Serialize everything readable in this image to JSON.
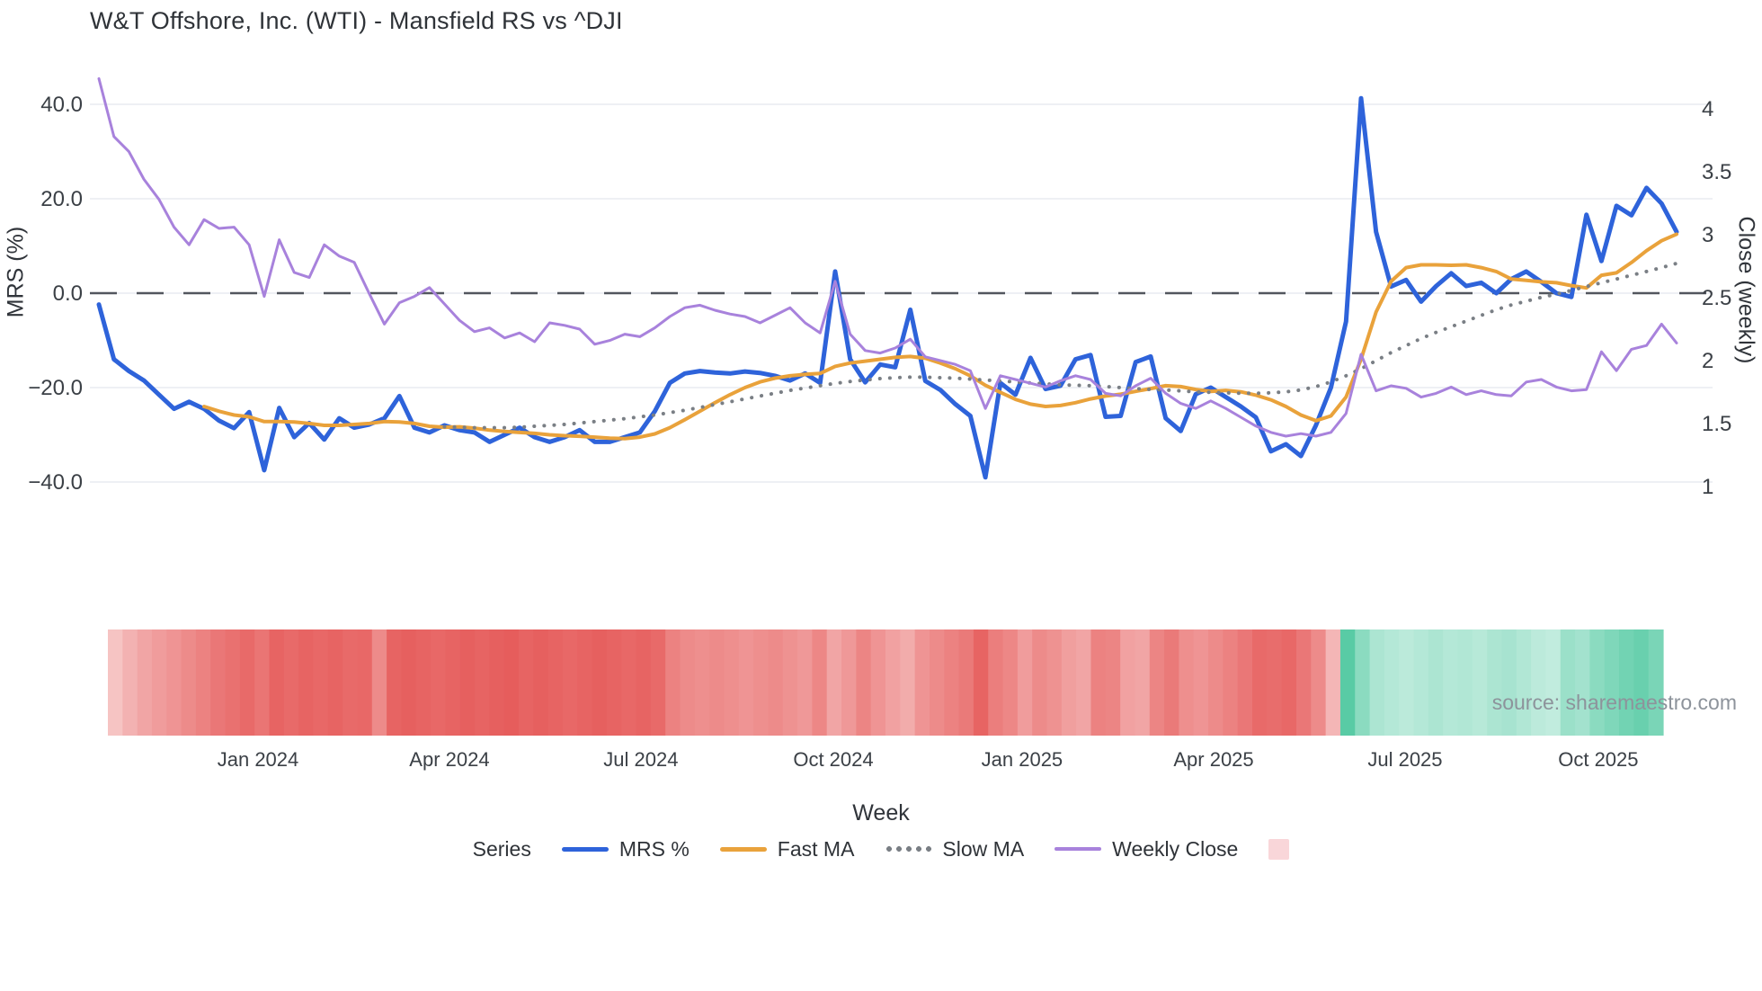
{
  "header": {
    "title": "W&T Offshore, Inc. (WTI) - Mansfield RS vs ^DJI"
  },
  "source_note": "source: sharemaestro.com",
  "legend": {
    "group_label": "Series",
    "items": [
      {
        "label": "MRS %",
        "color": "#2e63da",
        "style": "solid"
      },
      {
        "label": "Fast MA",
        "color": "#e9a23b",
        "style": "solid"
      },
      {
        "label": "Slow MA",
        "color": "#7a7f85",
        "style": "dotted"
      },
      {
        "label": "Weekly Close",
        "color": "#a882dc",
        "style": "solid"
      }
    ],
    "heat_swatch_color": "#f9d6d9"
  },
  "chart_data": {
    "type": "line",
    "title": "W&T Offshore, Inc. (WTI) - Mansfield RS vs ^DJI",
    "xlabel": "Week",
    "ylabel_left": "MRS (%)",
    "ylabel_right": "Close (weekly)",
    "grid": true,
    "zero_line": {
      "value": 0,
      "axis": "left",
      "style": "dashed",
      "color": "#52565e"
    },
    "left_axis": {
      "range": [
        -44,
        45
      ],
      "ticks": [
        {
          "v": 40,
          "label": "40.0"
        },
        {
          "v": 20,
          "label": "20.0"
        },
        {
          "v": 0,
          "label": "0.0"
        },
        {
          "v": -20,
          "label": "−20.0"
        },
        {
          "v": -40,
          "label": "−40.0"
        }
      ]
    },
    "right_axis": {
      "range": [
        0.9,
        4.3
      ],
      "ticks": [
        {
          "v": 4,
          "label": "4"
        },
        {
          "v": 3.5,
          "label": "3.5"
        },
        {
          "v": 3,
          "label": "3"
        },
        {
          "v": 2.5,
          "label": "2.5"
        },
        {
          "v": 2,
          "label": "2"
        },
        {
          "v": 1.5,
          "label": "1.5"
        },
        {
          "v": 1,
          "label": "1"
        }
      ]
    },
    "x_axis": {
      "unit": "week-index",
      "ticks": [
        {
          "i": 10.59,
          "label": "Jan 2024"
        },
        {
          "i": 23.33,
          "label": "Apr 2024"
        },
        {
          "i": 36.07,
          "label": "Jul 2024"
        },
        {
          "i": 48.88,
          "label": "Oct 2024"
        },
        {
          "i": 61.44,
          "label": "Jan 2025"
        },
        {
          "i": 74.19,
          "label": "Apr 2025"
        },
        {
          "i": 86.93,
          "label": "Jul 2025"
        },
        {
          "i": 99.79,
          "label": "Oct 2025"
        }
      ]
    },
    "series": [
      {
        "name": "MRS %",
        "axis": "left",
        "color": "#2e63da",
        "width": 5,
        "style": "solid",
        "values": [
          -2.4,
          -14.0,
          -16.5,
          -18.5,
          -21.5,
          -24.5,
          -23.0,
          -24.5,
          -27.0,
          -28.6,
          -25.2,
          -37.5,
          -24.3,
          -30.5,
          -27.5,
          -31.0,
          -26.5,
          -28.5,
          -27.8,
          -26.5,
          -21.8,
          -28.5,
          -29.5,
          -28.0,
          -29.0,
          -29.5,
          -31.5,
          -30.0,
          -28.5,
          -30.5,
          -31.5,
          -30.5,
          -29.0,
          -31.5,
          -31.5,
          -30.5,
          -29.5,
          -25.0,
          -19.0,
          -17.0,
          -16.5,
          -16.8,
          -17.0,
          -16.6,
          -16.9,
          -17.5,
          -18.5,
          -17.0,
          -19.0,
          4.6,
          -14.0,
          -18.9,
          -15.1,
          -15.7,
          -3.5,
          -18.6,
          -20.5,
          -23.5,
          -26.0,
          -39.0,
          -19.0,
          -21.5,
          -13.7,
          -20.3,
          -19.6,
          -14.0,
          -13.1,
          -26.2,
          -26.0,
          -14.6,
          -13.4,
          -26.5,
          -29.2,
          -21.4,
          -20.0,
          -22.0,
          -24.0,
          -26.3,
          -33.5,
          -32.0,
          -34.5,
          -28.0,
          -20.0,
          -6.0,
          41.3,
          13.0,
          1.4,
          2.8,
          -1.8,
          1.5,
          4.2,
          1.5,
          2.2,
          0.0,
          3.0,
          4.6,
          2.4,
          0.0,
          -0.8,
          16.6,
          6.8,
          18.5,
          16.5,
          22.3,
          19.0,
          13.0
        ]
      },
      {
        "name": "Fast MA",
        "axis": "left",
        "color": "#e9a23b",
        "width": 4,
        "style": "solid",
        "values": [
          null,
          null,
          null,
          null,
          null,
          null,
          null,
          -24.0,
          -25.0,
          -25.8,
          -26.2,
          -27.2,
          -27.2,
          -27.3,
          -27.6,
          -28.0,
          -28.0,
          -27.8,
          -27.6,
          -27.2,
          -27.3,
          -27.6,
          -28.2,
          -28.4,
          -28.3,
          -28.6,
          -29.0,
          -29.3,
          -29.5,
          -29.7,
          -30.0,
          -30.2,
          -30.3,
          -30.5,
          -30.7,
          -30.8,
          -30.5,
          -29.8,
          -28.5,
          -26.8,
          -25.0,
          -23.2,
          -21.5,
          -20.0,
          -18.8,
          -18.0,
          -17.5,
          -17.2,
          -17.0,
          -15.5,
          -14.8,
          -14.4,
          -14.0,
          -13.6,
          -13.4,
          -13.8,
          -14.8,
          -16.0,
          -17.5,
          -19.5,
          -21.0,
          -22.5,
          -23.5,
          -24.0,
          -23.8,
          -23.2,
          -22.4,
          -21.8,
          -21.4,
          -20.8,
          -20.2,
          -19.6,
          -19.8,
          -20.4,
          -20.8,
          -20.6,
          -20.9,
          -21.6,
          -22.6,
          -24.0,
          -25.8,
          -27.0,
          -26.0,
          -22.0,
          -14.0,
          -4.0,
          2.5,
          5.4,
          6.0,
          6.0,
          5.9,
          6.0,
          5.4,
          4.6,
          3.0,
          2.7,
          2.4,
          2.2,
          1.6,
          1.1,
          3.8,
          4.3,
          6.5,
          9.0,
          11.1,
          12.5
        ]
      },
      {
        "name": "Slow MA",
        "axis": "left",
        "color": "#7a7f85",
        "width": 4,
        "style": "dotted",
        "values": [
          null,
          null,
          null,
          null,
          null,
          null,
          null,
          null,
          null,
          null,
          null,
          null,
          null,
          null,
          null,
          null,
          null,
          null,
          null,
          null,
          null,
          null,
          null,
          -28.3,
          -28.4,
          -28.5,
          -28.5,
          -28.5,
          -28.4,
          -28.2,
          -28.0,
          -27.8,
          -27.5,
          -27.2,
          -26.9,
          -26.6,
          -26.2,
          -25.8,
          -25.3,
          -24.8,
          -24.2,
          -23.6,
          -23.0,
          -22.4,
          -21.8,
          -21.2,
          -20.6,
          -20.1,
          -19.6,
          -19.1,
          -18.7,
          -18.4,
          -18.1,
          -17.9,
          -17.8,
          -17.8,
          -17.9,
          -18.0,
          -18.2,
          -18.4,
          -18.6,
          -18.8,
          -19.0,
          -19.2,
          -19.4,
          -19.5,
          -19.6,
          -19.8,
          -20.0,
          -20.2,
          -20.4,
          -20.5,
          -20.7,
          -20.9,
          -21.0,
          -21.1,
          -21.2,
          -21.2,
          -21.1,
          -20.9,
          -20.5,
          -19.8,
          -18.8,
          -17.5,
          -16.0,
          -14.3,
          -12.6,
          -11.1,
          -9.6,
          -8.3,
          -7.1,
          -5.9,
          -4.7,
          -3.5,
          -2.5,
          -1.7,
          -0.9,
          -0.2,
          0.6,
          1.4,
          2.2,
          3.0,
          3.8,
          4.6,
          5.4,
          6.3
        ]
      },
      {
        "name": "Weekly Close",
        "axis": "right",
        "color": "#a882dc",
        "width": 3,
        "style": "solid",
        "values": [
          4.24,
          3.78,
          3.66,
          3.44,
          3.28,
          3.06,
          2.92,
          3.12,
          3.05,
          3.06,
          2.92,
          2.51,
          2.96,
          2.7,
          2.66,
          2.92,
          2.83,
          2.78,
          2.53,
          2.29,
          2.46,
          2.51,
          2.58,
          2.45,
          2.32,
          2.23,
          2.26,
          2.18,
          2.22,
          2.15,
          2.3,
          2.28,
          2.25,
          2.13,
          2.16,
          2.21,
          2.19,
          2.26,
          2.35,
          2.42,
          2.44,
          2.4,
          2.37,
          2.35,
          2.3,
          2.36,
          2.42,
          2.3,
          2.22,
          2.63,
          2.21,
          2.08,
          2.06,
          2.1,
          2.17,
          2.03,
          2.0,
          1.97,
          1.92,
          1.62,
          1.88,
          1.85,
          1.82,
          1.79,
          1.84,
          1.88,
          1.85,
          1.74,
          1.72,
          1.8,
          1.86,
          1.74,
          1.66,
          1.62,
          1.68,
          1.62,
          1.55,
          1.48,
          1.43,
          1.4,
          1.42,
          1.4,
          1.43,
          1.58,
          2.05,
          1.76,
          1.8,
          1.78,
          1.71,
          1.74,
          1.79,
          1.73,
          1.76,
          1.73,
          1.72,
          1.83,
          1.85,
          1.79,
          1.76,
          1.77,
          2.07,
          1.92,
          2.09,
          2.12,
          2.29,
          2.14
        ]
      }
    ],
    "heatmap_strip": {
      "negative_color": "#e4504f",
      "positive_color": "#2fbe8f",
      "values": [
        -0.12,
        -0.25,
        -0.35,
        -0.42,
        -0.48,
        -0.55,
        -0.62,
        -0.7,
        -0.75,
        -0.8,
        -0.72,
        -0.85,
        -0.8,
        -0.85,
        -0.82,
        -0.85,
        -0.8,
        -0.82,
        -0.55,
        -0.85,
        -0.88,
        -0.85,
        -0.82,
        -0.85,
        -0.88,
        -0.85,
        -0.88,
        -0.9,
        -0.85,
        -0.88,
        -0.85,
        -0.82,
        -0.85,
        -0.88,
        -0.85,
        -0.82,
        -0.85,
        -0.8,
        -0.62,
        -0.55,
        -0.52,
        -0.55,
        -0.52,
        -0.48,
        -0.52,
        -0.55,
        -0.5,
        -0.45,
        -0.58,
        -0.35,
        -0.45,
        -0.6,
        -0.48,
        -0.38,
        -0.3,
        -0.48,
        -0.55,
        -0.62,
        -0.68,
        -0.85,
        -0.65,
        -0.58,
        -0.42,
        -0.55,
        -0.5,
        -0.4,
        -0.35,
        -0.62,
        -0.6,
        -0.38,
        -0.35,
        -0.6,
        -0.68,
        -0.52,
        -0.48,
        -0.55,
        -0.62,
        -0.7,
        -0.8,
        -0.78,
        -0.82,
        -0.7,
        -0.55,
        -0.22,
        0.75,
        0.45,
        0.25,
        0.2,
        0.16,
        0.2,
        0.25,
        0.2,
        0.22,
        0.18,
        0.25,
        0.28,
        0.22,
        0.15,
        0.12,
        0.35,
        0.3,
        0.45,
        0.52,
        0.6,
        0.65,
        0.55
      ]
    }
  }
}
